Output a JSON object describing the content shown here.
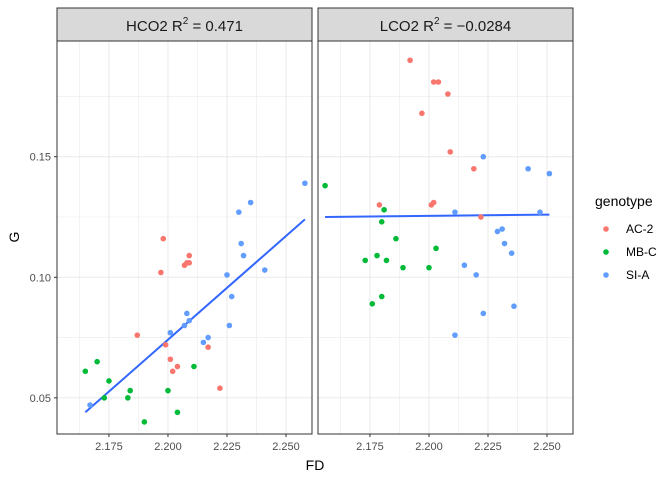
{
  "chart_data": {
    "type": "scatter",
    "xlabel": "FD",
    "ylabel": "G",
    "xlim": [
      2.153,
      2.261
    ],
    "ylim": [
      0.035,
      0.198
    ],
    "x_ticks": [
      2.175,
      2.2,
      2.225,
      2.25
    ],
    "x_tick_labels": [
      "2.175",
      "2.200",
      "2.225",
      "2.250"
    ],
    "y_ticks": [
      0.05,
      0.1,
      0.15
    ],
    "y_tick_labels": [
      "0.05",
      "0.10",
      "0.15"
    ],
    "grid": true,
    "legend": {
      "title": "genotype",
      "placement": "right",
      "entries": [
        {
          "name": "AC-2",
          "color": "#F8766D"
        },
        {
          "name": "MB-C",
          "color": "#00BA38"
        },
        {
          "name": "SI-A",
          "color": "#619CFF"
        }
      ]
    },
    "fit_line_color": "#3366FF",
    "panels": [
      {
        "strip_prefix": "HCO2 R",
        "strip_sup": "2",
        "strip_value": " = 0.471",
        "fit_line": {
          "x": [
            2.165,
            2.258
          ],
          "y": [
            0.044,
            0.124
          ]
        },
        "series": [
          {
            "name": "AC-2",
            "points": [
              [
                2.187,
                0.076
              ],
              [
                2.197,
                0.102
              ],
              [
                2.198,
                0.116
              ],
              [
                2.199,
                0.072
              ],
              [
                2.201,
                0.066
              ],
              [
                2.202,
                0.061
              ],
              [
                2.204,
                0.063
              ],
              [
                2.207,
                0.105
              ],
              [
                2.208,
                0.106
              ],
              [
                2.209,
                0.106
              ],
              [
                2.209,
                0.109
              ],
              [
                2.217,
                0.071
              ],
              [
                2.222,
                0.054
              ]
            ]
          },
          {
            "name": "MB-C",
            "points": [
              [
                2.165,
                0.061
              ],
              [
                2.17,
                0.065
              ],
              [
                2.173,
                0.05
              ],
              [
                2.175,
                0.057
              ],
              [
                2.183,
                0.05
              ],
              [
                2.184,
                0.053
              ],
              [
                2.19,
                0.04
              ],
              [
                2.2,
                0.053
              ],
              [
                2.204,
                0.044
              ],
              [
                2.211,
                0.063
              ]
            ]
          },
          {
            "name": "SI-A",
            "points": [
              [
                2.167,
                0.047
              ],
              [
                2.201,
                0.077
              ],
              [
                2.207,
                0.08
              ],
              [
                2.208,
                0.085
              ],
              [
                2.209,
                0.082
              ],
              [
                2.215,
                0.073
              ],
              [
                2.217,
                0.075
              ],
              [
                2.225,
                0.101
              ],
              [
                2.226,
                0.08
              ],
              [
                2.227,
                0.092
              ],
              [
                2.23,
                0.127
              ],
              [
                2.231,
                0.114
              ],
              [
                2.232,
                0.109
              ],
              [
                2.235,
                0.131
              ],
              [
                2.241,
                0.103
              ],
              [
                2.258,
                0.139
              ]
            ]
          }
        ]
      },
      {
        "strip_prefix": "LCO2 R",
        "strip_sup": "2",
        "strip_value": " = −0.0284",
        "fit_line": {
          "x": [
            2.156,
            2.251
          ],
          "y": [
            0.125,
            0.126
          ]
        },
        "series": [
          {
            "name": "AC-2",
            "points": [
              [
                2.179,
                0.13
              ],
              [
                2.192,
                0.19
              ],
              [
                2.197,
                0.168
              ],
              [
                2.201,
                0.13
              ],
              [
                2.202,
                0.131
              ],
              [
                2.202,
                0.181
              ],
              [
                2.204,
                0.181
              ],
              [
                2.208,
                0.176
              ],
              [
                2.209,
                0.152
              ],
              [
                2.219,
                0.145
              ],
              [
                2.222,
                0.125
              ]
            ]
          },
          {
            "name": "MB-C",
            "points": [
              [
                2.156,
                0.138
              ],
              [
                2.173,
                0.107
              ],
              [
                2.176,
                0.089
              ],
              [
                2.178,
                0.109
              ],
              [
                2.18,
                0.123
              ],
              [
                2.18,
                0.092
              ],
              [
                2.181,
                0.128
              ],
              [
                2.182,
                0.107
              ],
              [
                2.186,
                0.116
              ],
              [
                2.189,
                0.104
              ],
              [
                2.2,
                0.104
              ],
              [
                2.203,
                0.112
              ]
            ]
          },
          {
            "name": "SI-A",
            "points": [
              [
                2.211,
                0.127
              ],
              [
                2.211,
                0.076
              ],
              [
                2.215,
                0.105
              ],
              [
                2.22,
                0.101
              ],
              [
                2.223,
                0.085
              ],
              [
                2.223,
                0.15
              ],
              [
                2.229,
                0.119
              ],
              [
                2.231,
                0.12
              ],
              [
                2.232,
                0.114
              ],
              [
                2.235,
                0.11
              ],
              [
                2.236,
                0.088
              ],
              [
                2.242,
                0.145
              ],
              [
                2.247,
                0.127
              ],
              [
                2.251,
                0.143
              ]
            ]
          }
        ]
      }
    ]
  }
}
